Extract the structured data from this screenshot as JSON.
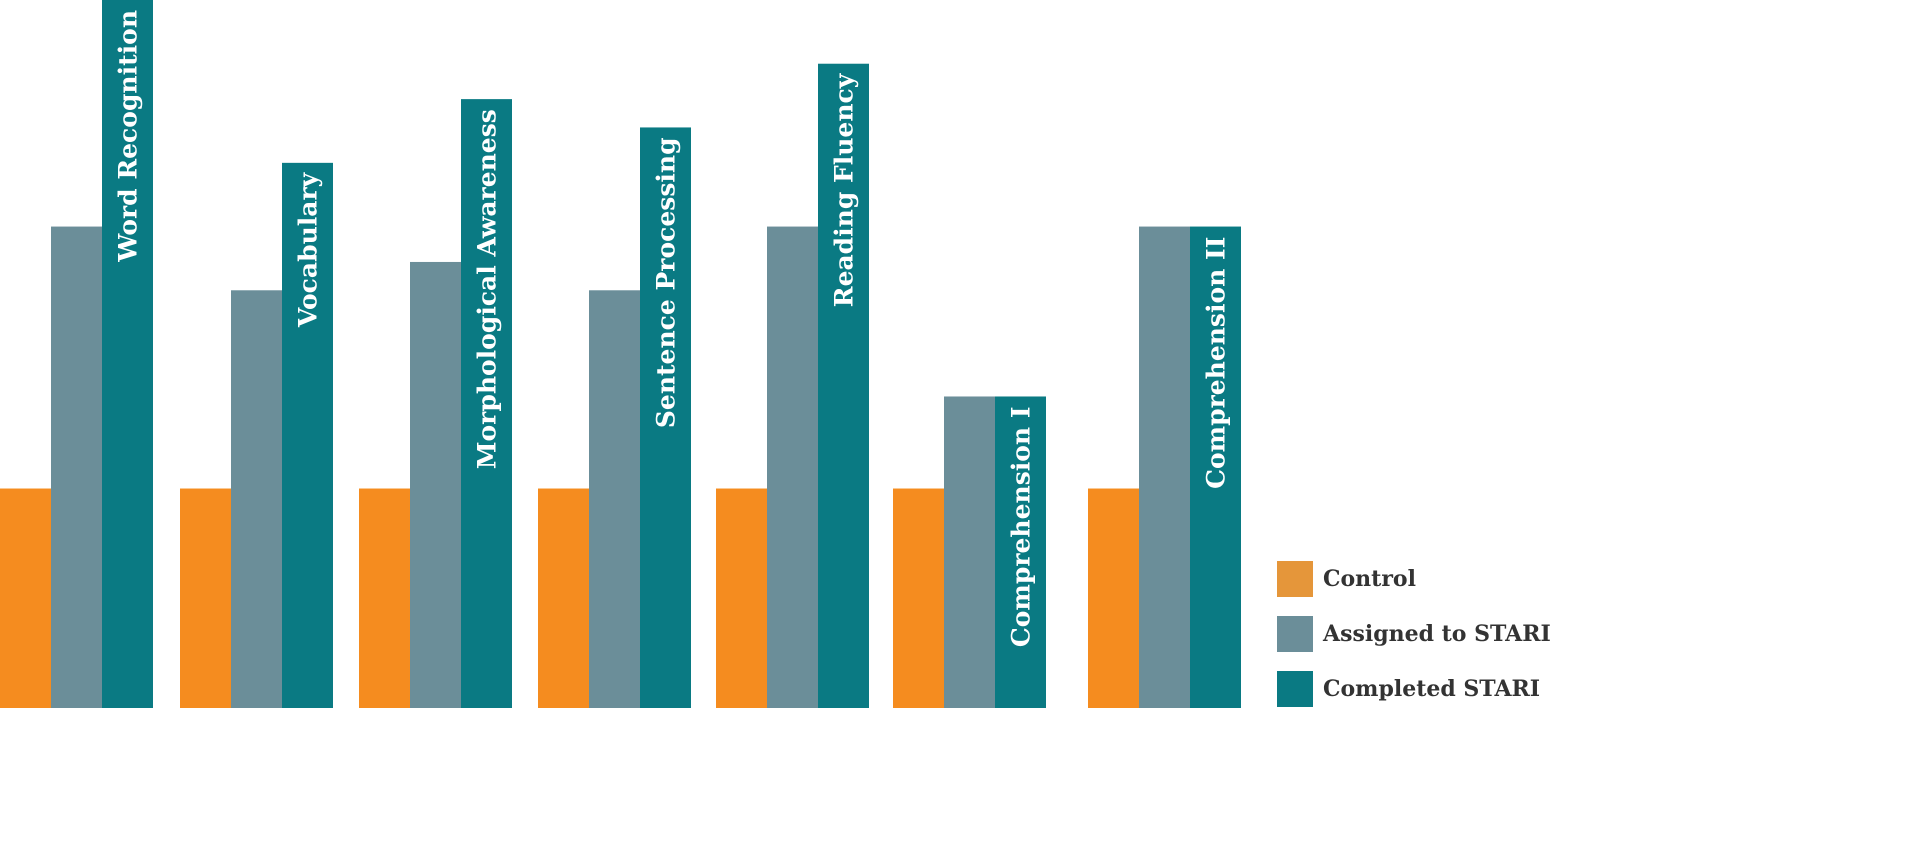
{
  "chart_data": {
    "type": "bar",
    "title": "",
    "xlabel": "",
    "ylabel": "",
    "ylim": [
      0,
      100
    ],
    "grid": false,
    "legend_position": "bottom-right",
    "categories": [
      "Word Recognition",
      "Vocabulary",
      "Morphological Awareness",
      "Sentence Processing",
      "Reading Fluency",
      "Comprehension I",
      "Comprehension II"
    ],
    "series": [
      {
        "name": "Control",
        "color": "#F58C1F",
        "values": [
          31,
          31,
          31,
          31,
          31,
          31,
          31
        ]
      },
      {
        "name": "Assigned to STARI",
        "color": "#6B8E99",
        "values": [
          68,
          59,
          63,
          59,
          68,
          44,
          68
        ]
      },
      {
        "name": "Completed STARI",
        "color": "#0A7A83",
        "values": [
          100,
          77,
          86,
          82,
          91,
          44,
          68
        ]
      }
    ],
    "legend_colors": [
      "#E5963A",
      "#6B8E99",
      "#0A7A83"
    ]
  }
}
